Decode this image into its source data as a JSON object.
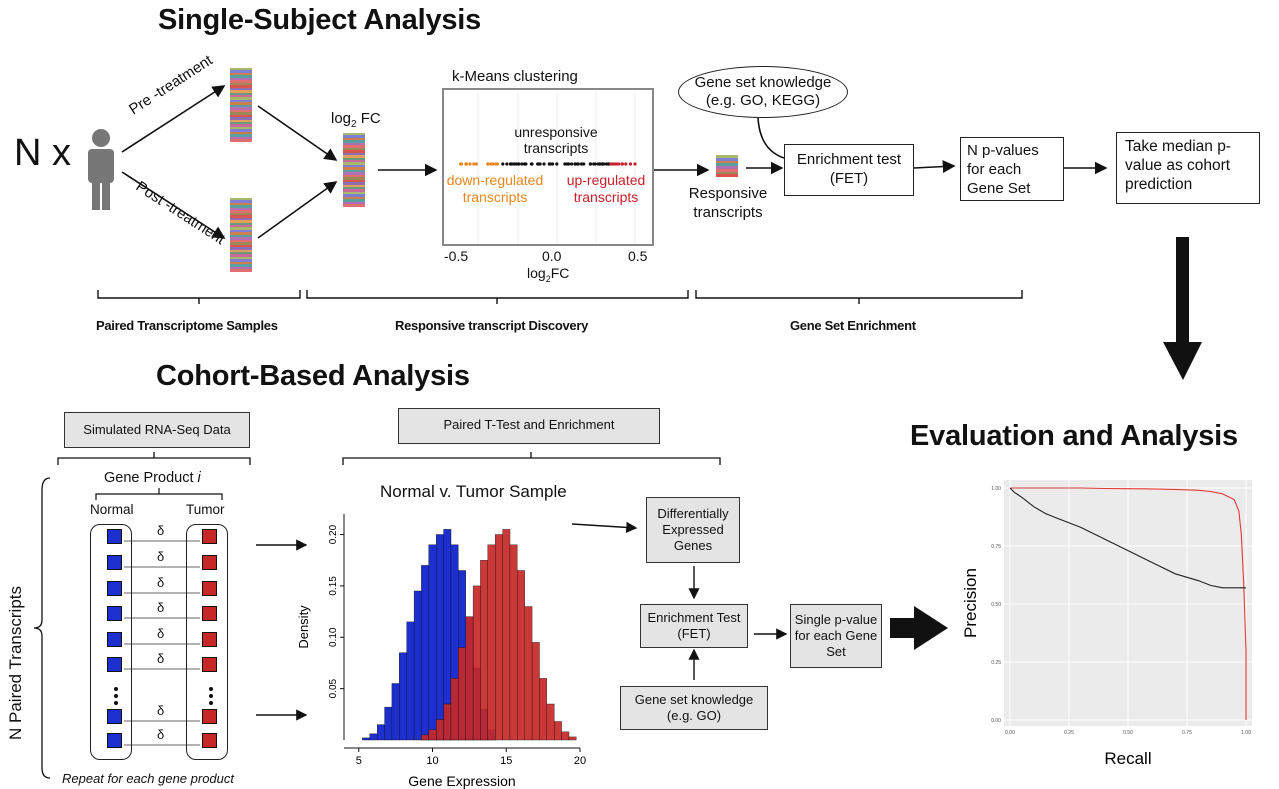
{
  "single_subject": {
    "title": "Single-Subject Analysis",
    "n_label": "N x",
    "pre_label": "Pre -treatment",
    "post_label": "Post -treatment",
    "log2fc_prefix": "log",
    "log2fc_sub": "2",
    "log2fc_suffix": " FC",
    "kmeans_title": "k-Means clustering",
    "unresponsive": "unresponsive transcripts",
    "down_regulated": "down-regulated transcripts",
    "up_regulated": "up-regulated transcripts",
    "kmeans_ticks": [
      "-0.5",
      "0.0",
      "0.5"
    ],
    "kmeans_xlabel_prefix": "log",
    "kmeans_xlabel_sub": "2",
    "kmeans_xlabel_suffix": "FC",
    "responsive": "Responsive transcripts",
    "gene_set_knowledge": "Gene set knowledge (e.g. GO, KEGG)",
    "enrichment_test": "Enrichment test (FET)",
    "n_pvalues": "N p-values for each Gene Set",
    "take_median": "Take median p-value as cohort prediction",
    "section_labels": [
      "Paired Transcriptome Samples",
      "Responsive transcript Discovery",
      "Gene Set Enrichment"
    ],
    "colors": {
      "down": "#e8861f",
      "up": "#c8202a",
      "neutral": "#111111"
    }
  },
  "cohort": {
    "title": "Cohort-Based Analysis",
    "simulated_box": "Simulated RNA-Seq Data",
    "paired_ttest_box": "Paired T-Test and Enrichment",
    "gene_product": "Gene Product",
    "gene_product_i": "i",
    "normal": "Normal",
    "tumor": "Tumor",
    "delta": "δ",
    "n_paired": "N Paired Transcripts",
    "repeat": "Repeat for each gene product",
    "hist_title": "Normal v. Tumor Sample",
    "diff_expressed": "Differentially Expressed Genes",
    "enrichment_test": "Enrichment Test (FET)",
    "gene_set_knowledge": "Gene set knowledge (e.g. GO)",
    "single_pvalue": "Single p-value for each Gene Set",
    "colors": {
      "normal": "#1d2fcf",
      "tumor": "#c62828"
    }
  },
  "evaluation": {
    "title": "Evaluation and Analysis"
  },
  "chart_data": [
    {
      "type": "bar",
      "title": "Normal v. Tumor Sample",
      "xlabel": "Gene Expression",
      "ylabel": "Density",
      "xlim": [
        4,
        20
      ],
      "ylim": [
        0,
        0.22
      ],
      "x_ticks": [
        "5",
        "10",
        "15",
        "20"
      ],
      "y_ticks": [
        "0.05",
        "0.10",
        "0.15",
        "0.20"
      ],
      "series": [
        {
          "name": "Normal",
          "color": "#1d2fcf",
          "x": [
            5.5,
            6.0,
            6.5,
            7.0,
            7.5,
            8.0,
            8.5,
            9.0,
            9.5,
            10.0,
            10.5,
            11.0,
            11.5,
            12.0,
            12.5,
            13.0,
            13.5,
            14.0
          ],
          "values": [
            0.002,
            0.006,
            0.015,
            0.032,
            0.055,
            0.085,
            0.115,
            0.145,
            0.17,
            0.19,
            0.2,
            0.205,
            0.19,
            0.165,
            0.12,
            0.07,
            0.03,
            0.01
          ]
        },
        {
          "name": "Tumor",
          "color": "#c62828",
          "x": [
            9.5,
            10.0,
            10.5,
            11.0,
            11.5,
            12.0,
            12.5,
            13.0,
            13.5,
            14.0,
            14.5,
            15.0,
            15.5,
            16.0,
            16.5,
            17.0,
            17.5,
            18.0,
            18.5,
            19.0,
            19.5
          ],
          "values": [
            0.005,
            0.01,
            0.02,
            0.035,
            0.06,
            0.09,
            0.12,
            0.15,
            0.175,
            0.19,
            0.2,
            0.205,
            0.19,
            0.165,
            0.13,
            0.095,
            0.06,
            0.035,
            0.018,
            0.008,
            0.003
          ]
        }
      ]
    },
    {
      "type": "line",
      "xlabel": "Recall",
      "ylabel": "Precision",
      "xlim": [
        0,
        1
      ],
      "ylim": [
        0,
        1
      ],
      "x_ticks": [
        "0.00",
        "0.25",
        "0.50",
        "0.75",
        "1.00"
      ],
      "y_ticks": [
        "0.00",
        "0.25",
        "0.50",
        "0.75",
        "1.00"
      ],
      "grid": true,
      "series": [
        {
          "color": "#e53935",
          "x": [
            0,
            0.1,
            0.2,
            0.3,
            0.4,
            0.5,
            0.6,
            0.7,
            0.8,
            0.85,
            0.9,
            0.95,
            0.97,
            0.98,
            0.99,
            1.0,
            1.0
          ],
          "values": [
            1.0,
            1.0,
            1.0,
            1.0,
            0.998,
            0.997,
            0.996,
            0.994,
            0.99,
            0.985,
            0.975,
            0.95,
            0.9,
            0.8,
            0.6,
            0.3,
            0.0
          ]
        },
        {
          "color": "#222222",
          "x": [
            0,
            0.02,
            0.05,
            0.1,
            0.15,
            0.2,
            0.3,
            0.4,
            0.5,
            0.6,
            0.7,
            0.8,
            0.85,
            0.9,
            1.0
          ],
          "values": [
            1.0,
            0.98,
            0.96,
            0.92,
            0.89,
            0.87,
            0.83,
            0.78,
            0.73,
            0.68,
            0.63,
            0.6,
            0.58,
            0.57,
            0.57
          ]
        }
      ]
    }
  ]
}
